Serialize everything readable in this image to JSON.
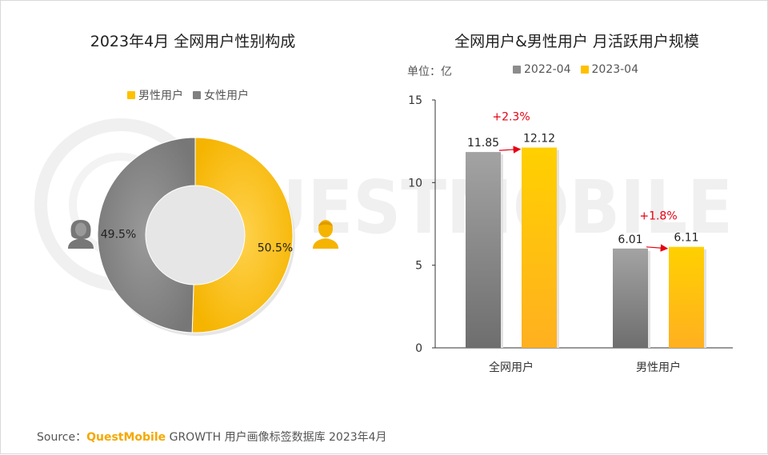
{
  "left_title": "2023年4月 全网用户性别构成",
  "right_title": "全网用户&男性用户 月活跃用户规模",
  "unit_label": "单位：亿",
  "watermark": "QUESTMOBILE",
  "source": {
    "prefix": "Source：",
    "brand": "QuestMobile",
    "suffix": " GROWTH 用户画像标签数据库 2023年4月"
  },
  "colors": {
    "male": "#FFC000",
    "female": "#808080",
    "series_2022": "#8C8C8C",
    "series_2023": "#FFC000",
    "arrow": "#E60012"
  },
  "chart_data": [
    {
      "type": "pie",
      "style": "donut",
      "title": "2023年4月 全网用户性别构成",
      "legend": [
        "男性用户",
        "女性用户"
      ],
      "legend_position": "top",
      "slices": [
        {
          "label": "男性用户",
          "value": 50.5,
          "display": "50.5%",
          "icon": "male-user-icon"
        },
        {
          "label": "女性用户",
          "value": 49.5,
          "display": "49.5%",
          "icon": "female-user-icon"
        }
      ]
    },
    {
      "type": "bar",
      "title": "全网用户&男性用户 月活跃用户规模",
      "ylabel": "单位：亿",
      "categories": [
        "全网用户",
        "男性用户"
      ],
      "series": [
        {
          "name": "2022-04",
          "values": [
            11.85,
            6.01
          ],
          "labels": [
            "11.85",
            "6.01"
          ]
        },
        {
          "name": "2023-04",
          "values": [
            12.12,
            6.11
          ],
          "labels": [
            "12.12",
            "6.11"
          ]
        }
      ],
      "growth": [
        "+2.3%",
        "+1.8%"
      ],
      "ylim": [
        0,
        15
      ],
      "yticks": [
        "0",
        "5",
        "10",
        "15"
      ],
      "grid": false,
      "legend_position": "top"
    }
  ]
}
